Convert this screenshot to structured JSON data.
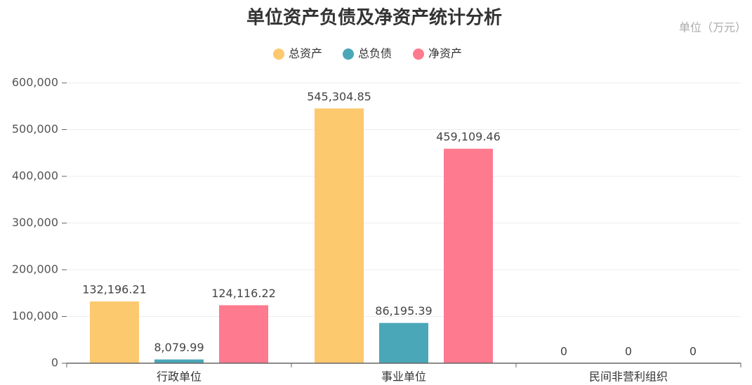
{
  "chart_data": {
    "type": "bar",
    "title": "单位资产负债及净资产统计分析",
    "unit": "单位（万元）",
    "categories": [
      "行政单位",
      "事业单位",
      "民间非营利组织"
    ],
    "series": [
      {
        "name": "总资产",
        "color": "#fdc96f",
        "values": [
          132196.21,
          545304.85,
          0
        ],
        "value_labels": [
          "132,196.21",
          "545,304.85",
          "0"
        ]
      },
      {
        "name": "总负债",
        "color": "#4aa7b8",
        "values": [
          8079.99,
          86195.39,
          0
        ],
        "value_labels": [
          "8,079.99",
          "86,195.39",
          "0"
        ]
      },
      {
        "name": "净资产",
        "color": "#fe7a8f",
        "values": [
          124116.22,
          459109.46,
          0
        ],
        "value_labels": [
          "124,116.22",
          "459,109.46",
          "0"
        ]
      }
    ],
    "ylim": [
      0,
      600000
    ],
    "yticks": [
      0,
      {
        "value": 100000,
        "label": "100,000"
      },
      {
        "value": 200000,
        "label": "200,000"
      },
      {
        "value": 300000,
        "label": "300,000"
      },
      {
        "value": 400000,
        "label": "400,000"
      },
      {
        "value": 500000,
        "label": "500,000"
      },
      {
        "value": 600000,
        "label": "600,000"
      }
    ],
    "grid": true,
    "legend": "top"
  }
}
